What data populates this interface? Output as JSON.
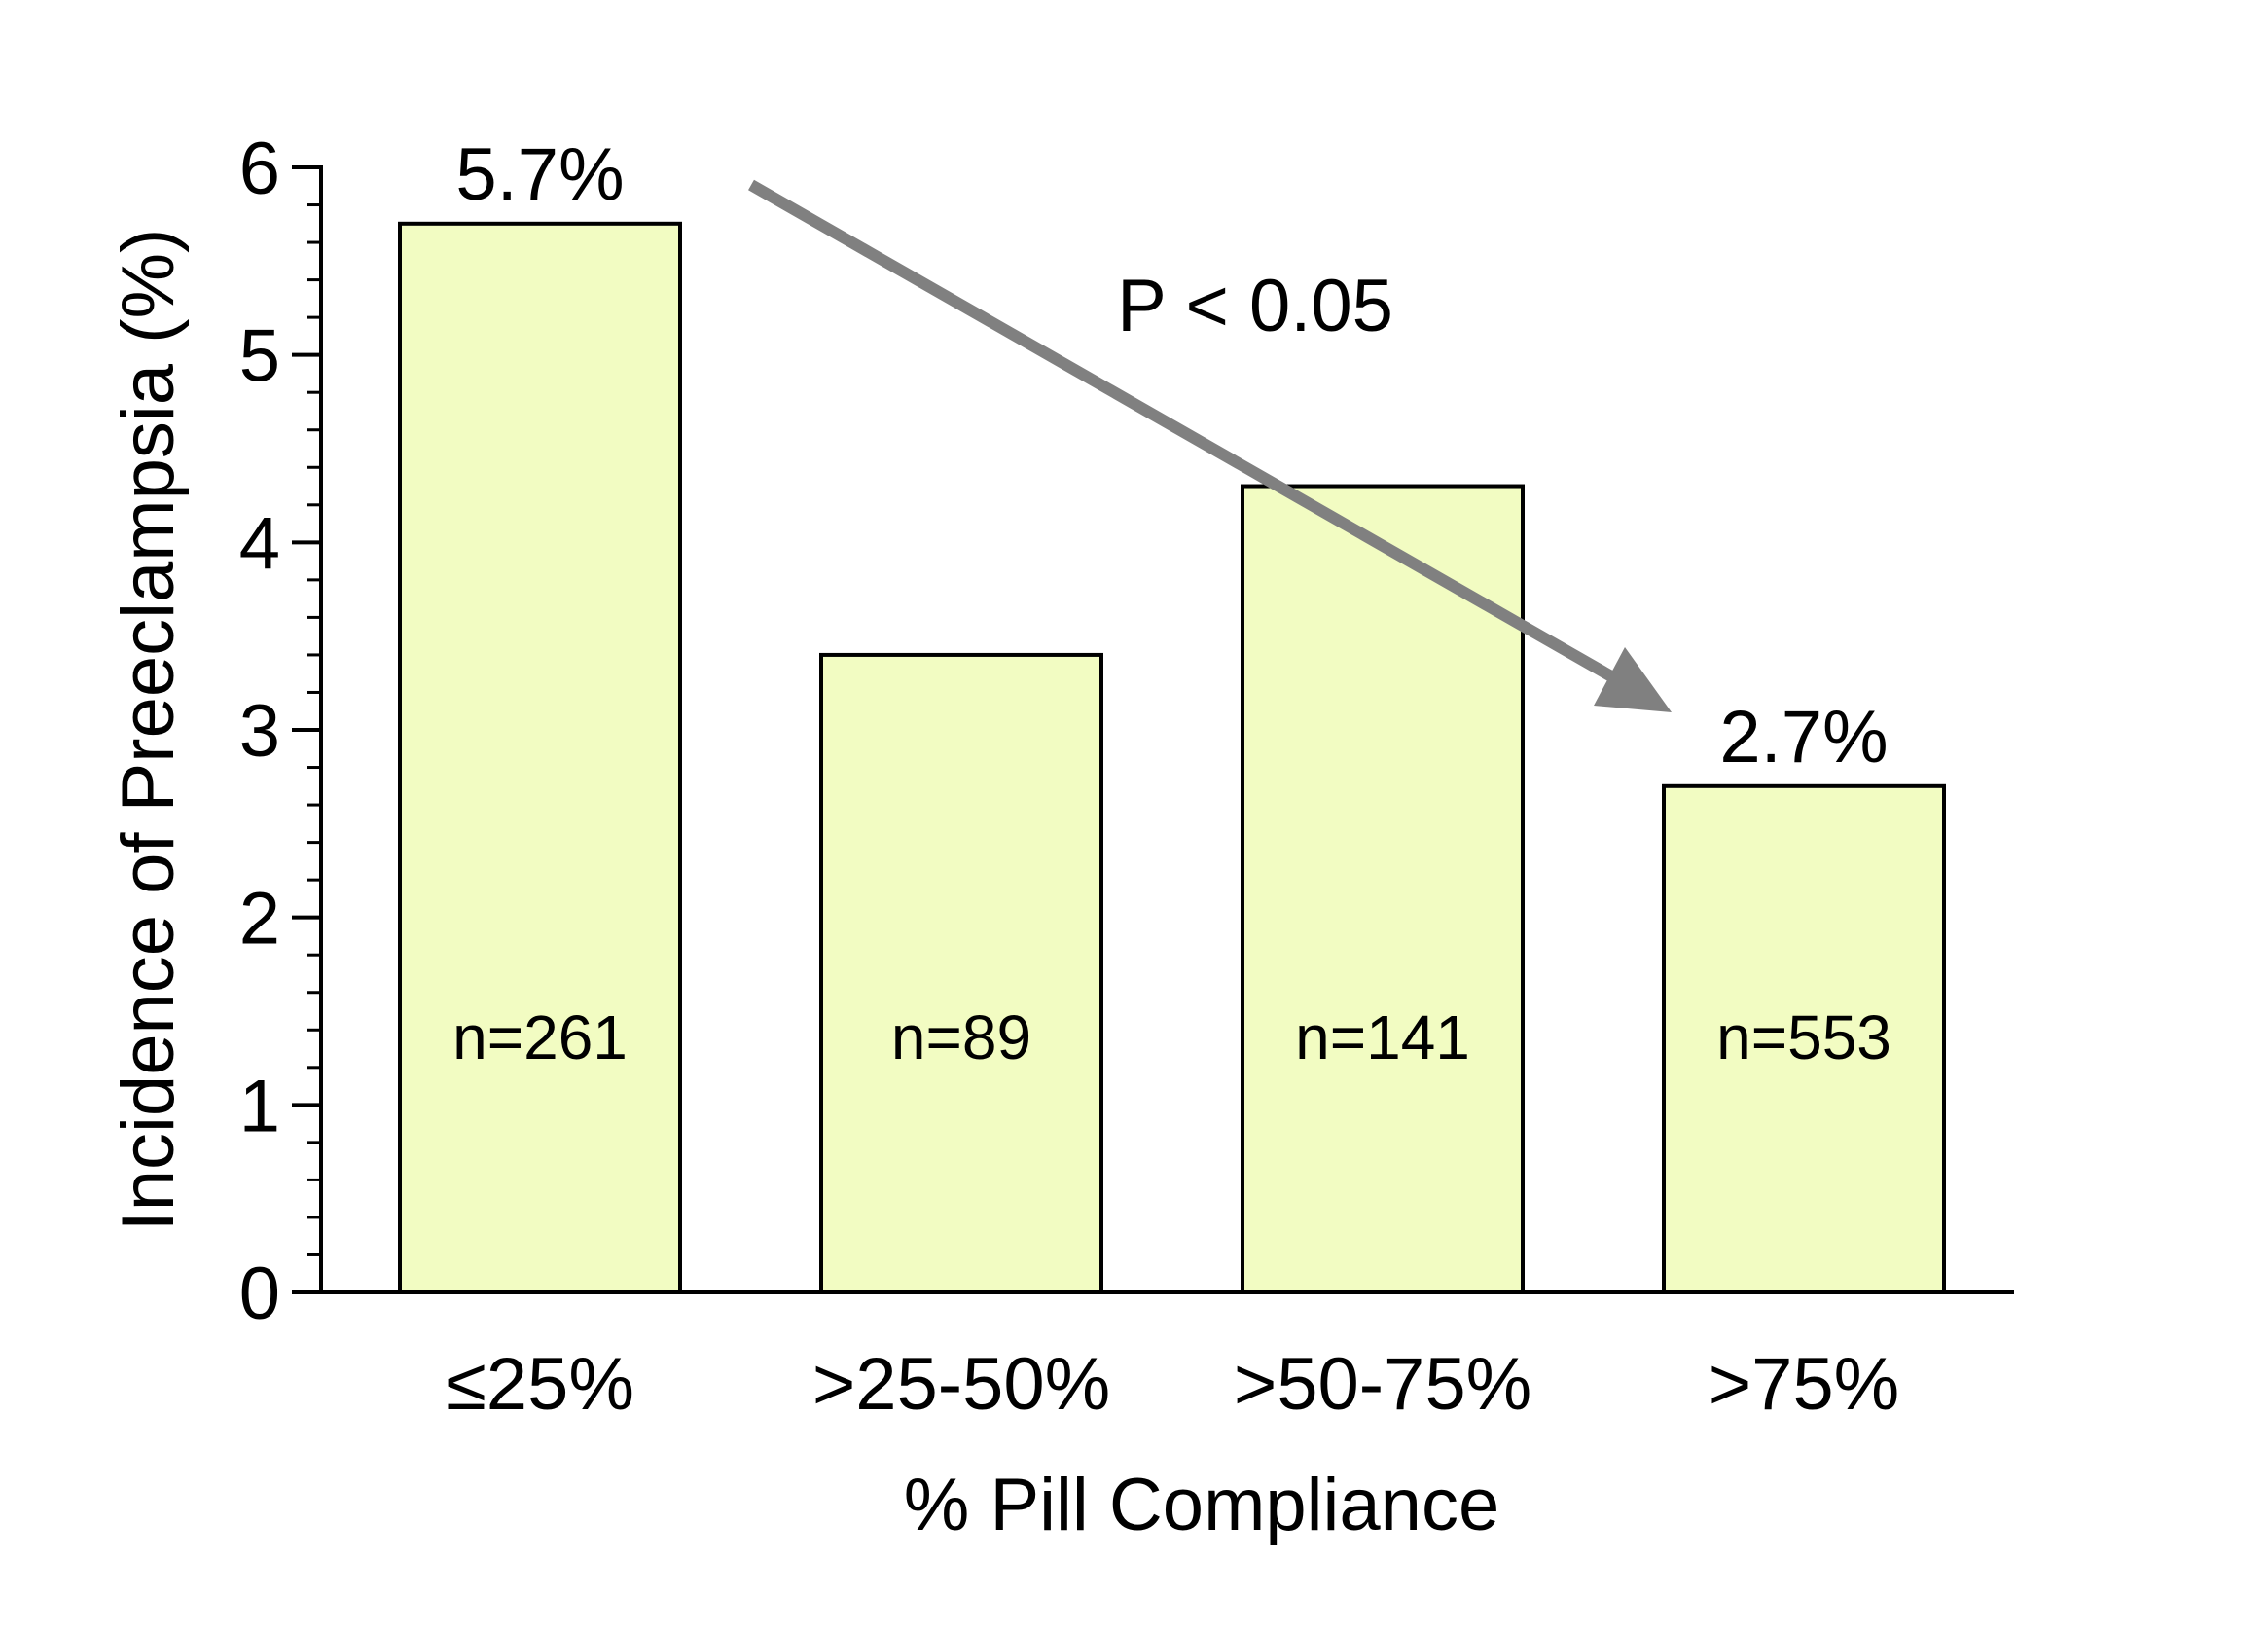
{
  "chart_data": {
    "type": "bar",
    "categories": [
      "≤25%",
      ">25-50%",
      ">50-75%",
      ">75%"
    ],
    "values": [
      5.7,
      3.4,
      4.3,
      2.7
    ],
    "sample_sizes": [
      "n=261",
      "n=89",
      "n=141",
      "n=553"
    ],
    "value_labels": [
      "5.7%",
      "",
      "",
      "2.7%"
    ],
    "xlabel": "% Pill Compliance",
    "ylabel": "Incidence of Preeclampsia (%)",
    "ylim": [
      0,
      6
    ],
    "yticks": [
      0,
      1,
      2,
      3,
      4,
      5,
      6
    ],
    "minor_ticks_per_major": 5,
    "grid": false,
    "trend_annotation": {
      "label": "P < 0.05",
      "from_category": 0,
      "to_category": 3
    },
    "colors": {
      "bar_fill": "#f2fcc2",
      "bar_stroke": "#000000",
      "arrow": "#808080"
    }
  }
}
